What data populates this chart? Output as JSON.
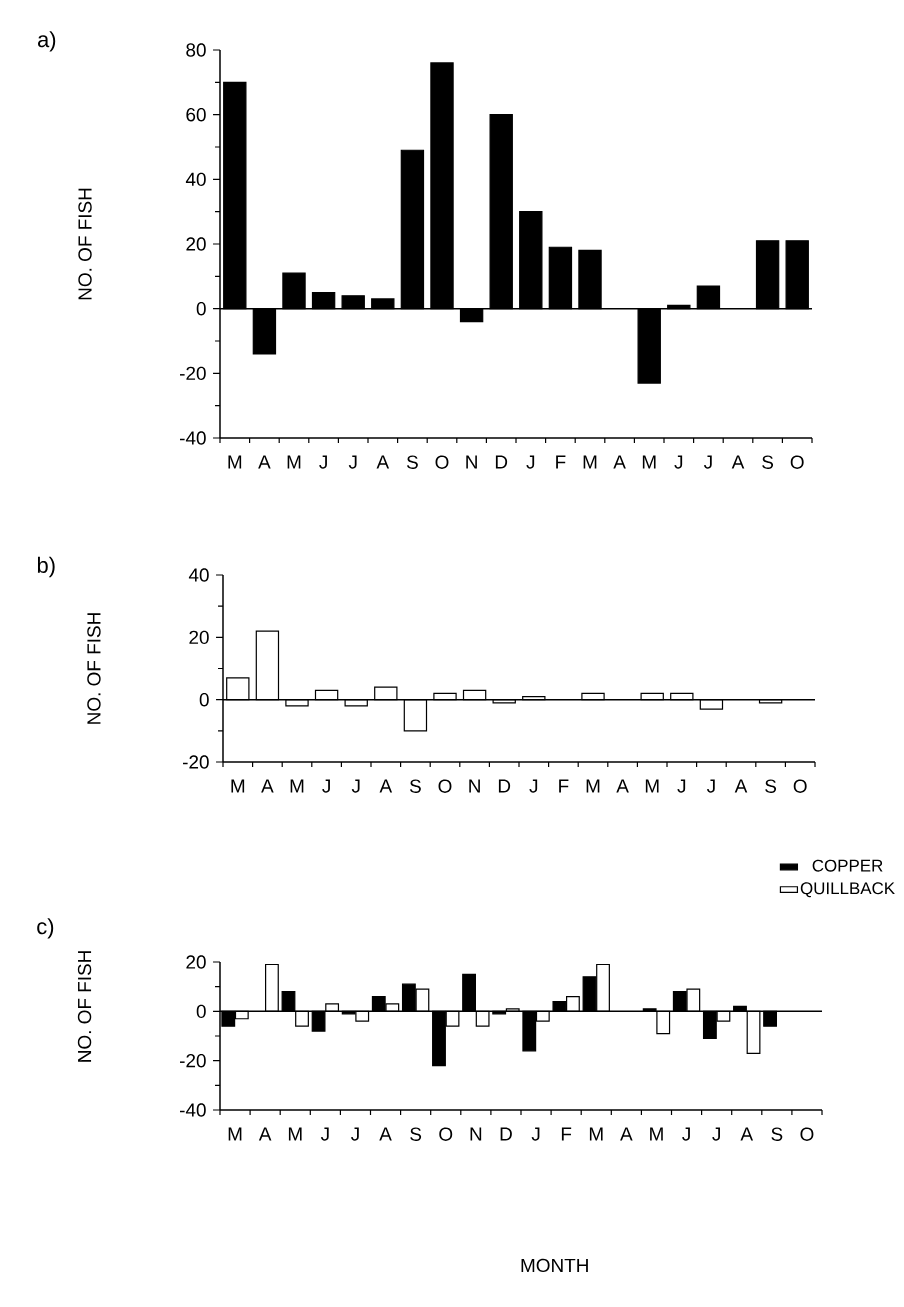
{
  "chart_data": [
    {
      "type": "bar",
      "title": "a)",
      "ylabel": "NO. OF FISH",
      "categories": [
        "M",
        "A",
        "M",
        "J",
        "J",
        "A",
        "S",
        "O",
        "N",
        "D",
        "J",
        "F",
        "M",
        "A",
        "M",
        "J",
        "J",
        "A",
        "S",
        "O"
      ],
      "series": [
        {
          "color": "#000000",
          "values": [
            70,
            -14,
            11,
            5,
            4,
            3,
            49,
            76,
            -4,
            60,
            30,
            19,
            18,
            null,
            -23,
            1,
            7,
            null,
            21,
            21
          ]
        }
      ],
      "ylim": [
        -40,
        80
      ],
      "yticks": [
        -40,
        -20,
        0,
        20,
        40,
        60,
        80
      ]
    },
    {
      "type": "bar",
      "title": "b)",
      "ylabel": "NO. OF FISH",
      "categories": [
        "M",
        "A",
        "M",
        "J",
        "J",
        "A",
        "S",
        "O",
        "N",
        "D",
        "J",
        "F",
        "M",
        "A",
        "M",
        "J",
        "J",
        "A",
        "S",
        "O"
      ],
      "series": [
        {
          "color": "#ffffff",
          "values": [
            7,
            22,
            -2,
            3,
            -2,
            4,
            -10,
            2,
            3,
            -1,
            1,
            null,
            2,
            null,
            2,
            2,
            -3,
            null,
            -1,
            null
          ]
        }
      ],
      "ylim": [
        -20,
        40
      ],
      "yticks": [
        -20,
        0,
        20,
        40
      ]
    },
    {
      "type": "bar",
      "title": "c)",
      "ylabel": "NO. OF FISH",
      "xlabel": "MONTH",
      "categories": [
        "M",
        "A",
        "M",
        "J",
        "J",
        "A",
        "S",
        "O",
        "N",
        "D",
        "J",
        "F",
        "M",
        "A",
        "M",
        "J",
        "J",
        "A",
        "S",
        "O"
      ],
      "series": [
        {
          "name": "COPPER",
          "color": "#000000",
          "values": [
            -6,
            null,
            8,
            -8,
            -1,
            6,
            11,
            -22,
            15,
            -1,
            -16,
            4,
            14,
            null,
            1,
            8,
            -11,
            2,
            -6,
            null
          ]
        },
        {
          "name": "QUILLBACK",
          "color": "#ffffff",
          "values": [
            -3,
            19,
            -6,
            3,
            -4,
            3,
            9,
            -6,
            -6,
            1,
            -4,
            6,
            19,
            null,
            -9,
            9,
            -4,
            -17,
            null,
            null
          ]
        }
      ],
      "ylim": [
        -40,
        20
      ],
      "yticks": [
        -40,
        -20,
        0,
        20
      ],
      "legend": "top right"
    }
  ]
}
